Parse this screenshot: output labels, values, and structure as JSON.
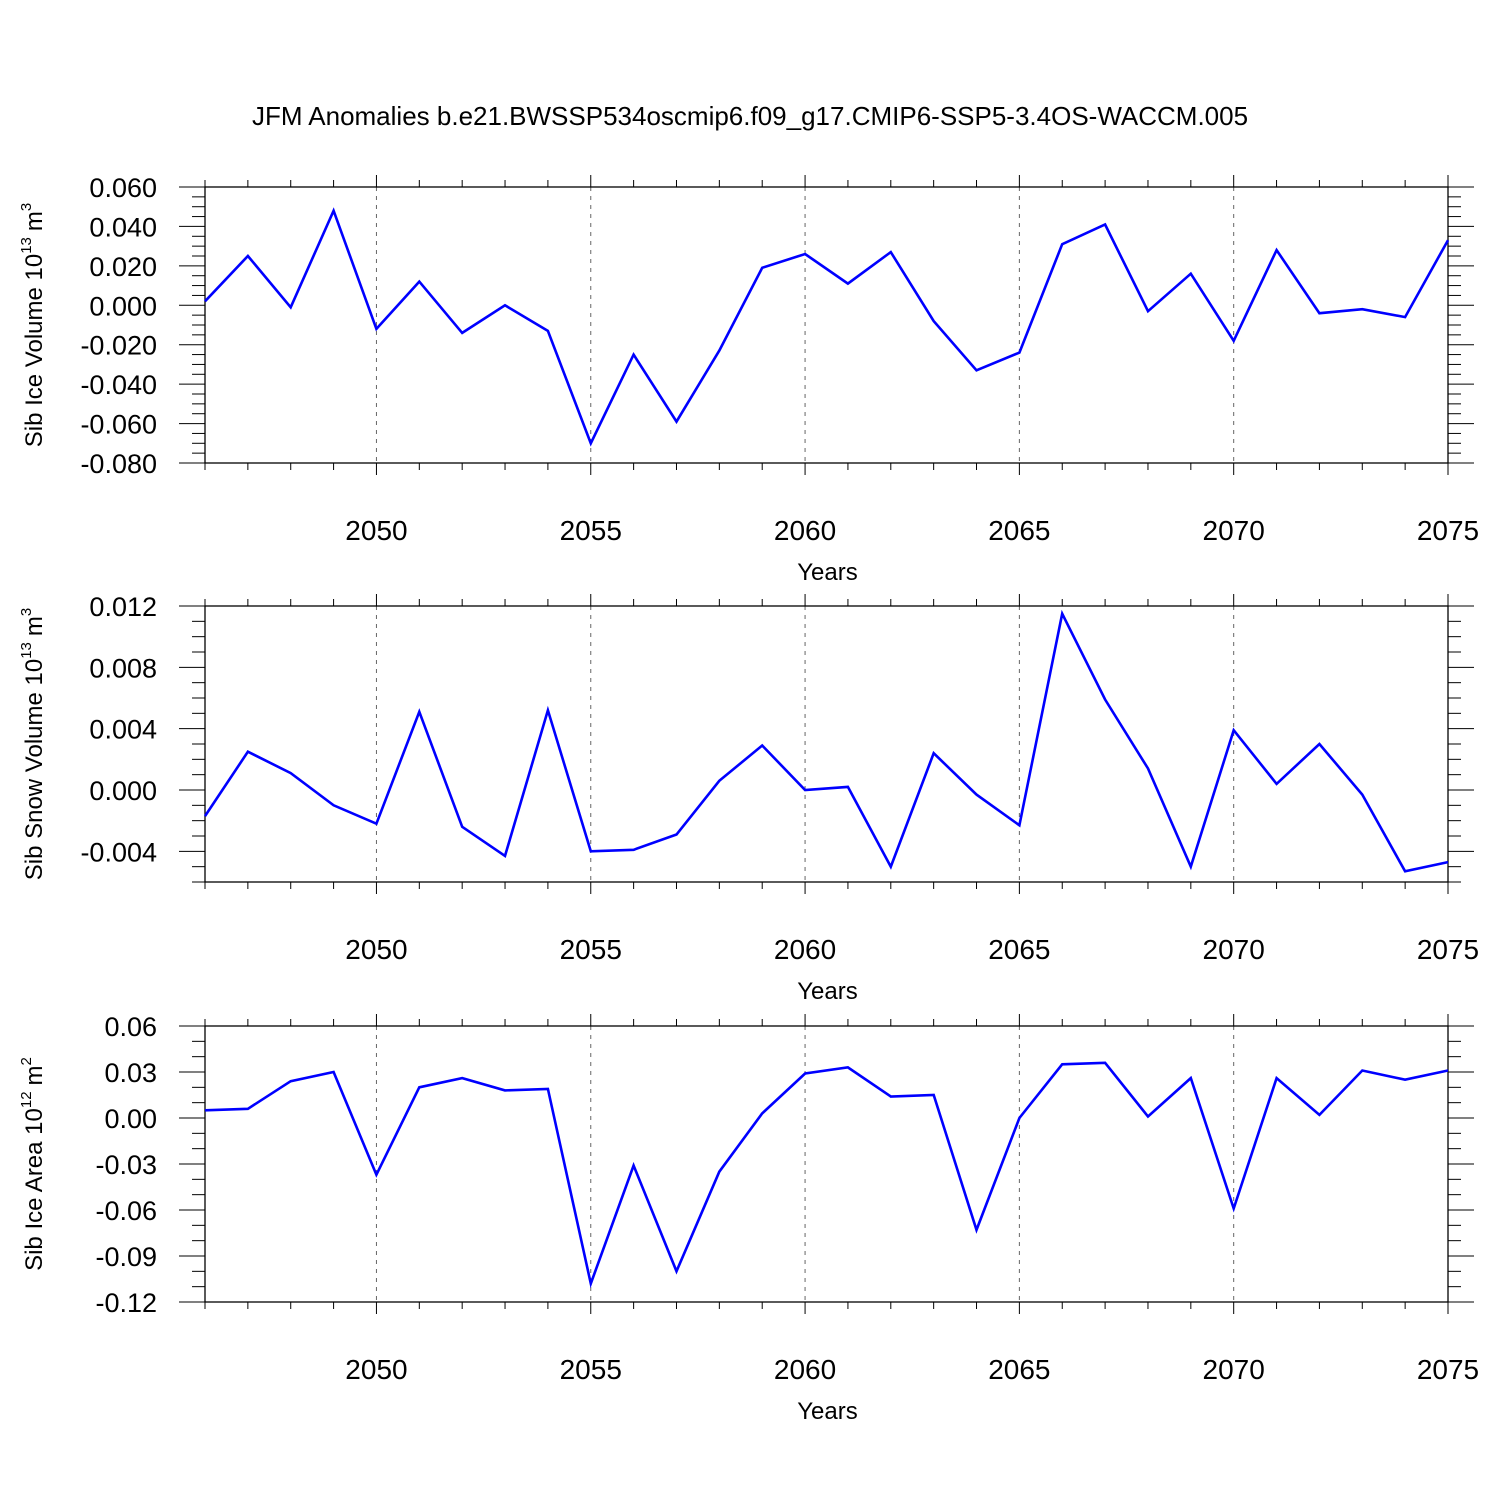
{
  "title": "JFM Anomalies b.e21.BWSSP534oscmip6.f09_g17.CMIP6-SSP5-3.4OS-WACCM.005",
  "colors": {
    "line": "#0000ff",
    "axis": "#000000",
    "grid": "#666666"
  },
  "chart_data": [
    {
      "type": "line",
      "name": "sib-ice-volume",
      "ylabel_text": "Sib Ice Volume 10",
      "ylabel_exp": "13",
      "ylabel_unit": "m",
      "ylabel_unit_exp": "3",
      "xlabel": "Years",
      "xlim": [
        2046,
        2075
      ],
      "ylim": [
        -0.08,
        0.06
      ],
      "yticks": [
        0.06,
        0.04,
        0.02,
        0.0,
        -0.02,
        -0.04,
        -0.06,
        -0.08
      ],
      "ytick_labels": [
        "0.060",
        "0.040",
        "0.020",
        "0.000",
        "-0.020",
        "-0.040",
        "-0.060",
        "-0.080"
      ],
      "yminor_step": 0.005,
      "xticks": [
        2050,
        2055,
        2060,
        2065,
        2070,
        2075
      ],
      "xtick_labels": [
        "2050",
        "2055",
        "2060",
        "2065",
        "2070",
        "2075"
      ],
      "x": [
        2046,
        2047,
        2048,
        2049,
        2050,
        2051,
        2052,
        2053,
        2054,
        2055,
        2056,
        2057,
        2058,
        2059,
        2060,
        2061,
        2062,
        2063,
        2064,
        2065,
        2066,
        2067,
        2068,
        2069,
        2070,
        2071,
        2072,
        2073,
        2074,
        2075
      ],
      "values": [
        0.002,
        0.025,
        -0.001,
        0.048,
        -0.012,
        0.012,
        -0.014,
        0.0,
        -0.013,
        -0.07,
        -0.025,
        -0.059,
        -0.023,
        0.019,
        0.026,
        0.011,
        0.027,
        -0.008,
        -0.033,
        -0.024,
        0.031,
        0.041,
        -0.003,
        0.016,
        -0.018,
        0.028,
        -0.004,
        -0.002,
        -0.006,
        0.033
      ]
    },
    {
      "type": "line",
      "name": "sib-snow-volume",
      "ylabel_text": "Sib Snow Volume 10",
      "ylabel_exp": "13",
      "ylabel_unit": "m",
      "ylabel_unit_exp": "3",
      "xlabel": "Years",
      "xlim": [
        2046,
        2075
      ],
      "ylim": [
        -0.006,
        0.012
      ],
      "yticks": [
        0.012,
        0.008,
        0.004,
        0.0,
        -0.004
      ],
      "ytick_labels": [
        "0.012",
        "0.008",
        "0.004",
        "0.000",
        "-0.004"
      ],
      "yminor_step": 0.001,
      "xticks": [
        2050,
        2055,
        2060,
        2065,
        2070,
        2075
      ],
      "xtick_labels": [
        "2050",
        "2055",
        "2060",
        "2065",
        "2070",
        "2075"
      ],
      "x": [
        2046,
        2047,
        2048,
        2049,
        2050,
        2051,
        2052,
        2053,
        2054,
        2055,
        2056,
        2057,
        2058,
        2059,
        2060,
        2061,
        2062,
        2063,
        2064,
        2065,
        2066,
        2067,
        2068,
        2069,
        2070,
        2071,
        2072,
        2073,
        2074,
        2075
      ],
      "values": [
        -0.0017,
        0.0025,
        0.0011,
        -0.001,
        -0.0022,
        0.0051,
        -0.0024,
        -0.0043,
        0.0052,
        -0.004,
        -0.0039,
        -0.0029,
        0.0006,
        0.0029,
        0.0,
        0.0002,
        -0.005,
        0.0024,
        -0.0003,
        -0.0023,
        0.0115,
        0.0059,
        0.0014,
        -0.005,
        0.0039,
        0.0004,
        0.003,
        -0.0003,
        -0.0053,
        -0.0047
      ]
    },
    {
      "type": "line",
      "name": "sib-ice-area",
      "ylabel_text": "Sib Ice Area 10",
      "ylabel_exp": "12",
      "ylabel_unit": "m",
      "ylabel_unit_exp": "2",
      "xlabel": "Years",
      "xlim": [
        2046,
        2075
      ],
      "ylim": [
        -0.12,
        0.06
      ],
      "yticks": [
        0.06,
        0.03,
        0.0,
        -0.03,
        -0.06,
        -0.09,
        -0.12
      ],
      "ytick_labels": [
        "0.06",
        "0.03",
        "0.00",
        "-0.03",
        "-0.06",
        "-0.09",
        "-0.12"
      ],
      "yminor_step": 0.01,
      "xticks": [
        2050,
        2055,
        2060,
        2065,
        2070,
        2075
      ],
      "xtick_labels": [
        "2050",
        "2055",
        "2060",
        "2065",
        "2070",
        "2075"
      ],
      "x": [
        2046,
        2047,
        2048,
        2049,
        2050,
        2051,
        2052,
        2053,
        2054,
        2055,
        2056,
        2057,
        2058,
        2059,
        2060,
        2061,
        2062,
        2063,
        2064,
        2065,
        2066,
        2067,
        2068,
        2069,
        2070,
        2071,
        2072,
        2073,
        2074,
        2075
      ],
      "values": [
        0.005,
        0.006,
        0.024,
        0.03,
        -0.037,
        0.02,
        0.026,
        0.018,
        0.019,
        -0.108,
        -0.031,
        -0.1,
        -0.035,
        0.003,
        0.029,
        0.033,
        0.014,
        0.015,
        -0.073,
        0.0,
        0.035,
        0.036,
        0.001,
        0.026,
        -0.059,
        0.026,
        0.002,
        0.031,
        0.025,
        0.031
      ]
    }
  ]
}
